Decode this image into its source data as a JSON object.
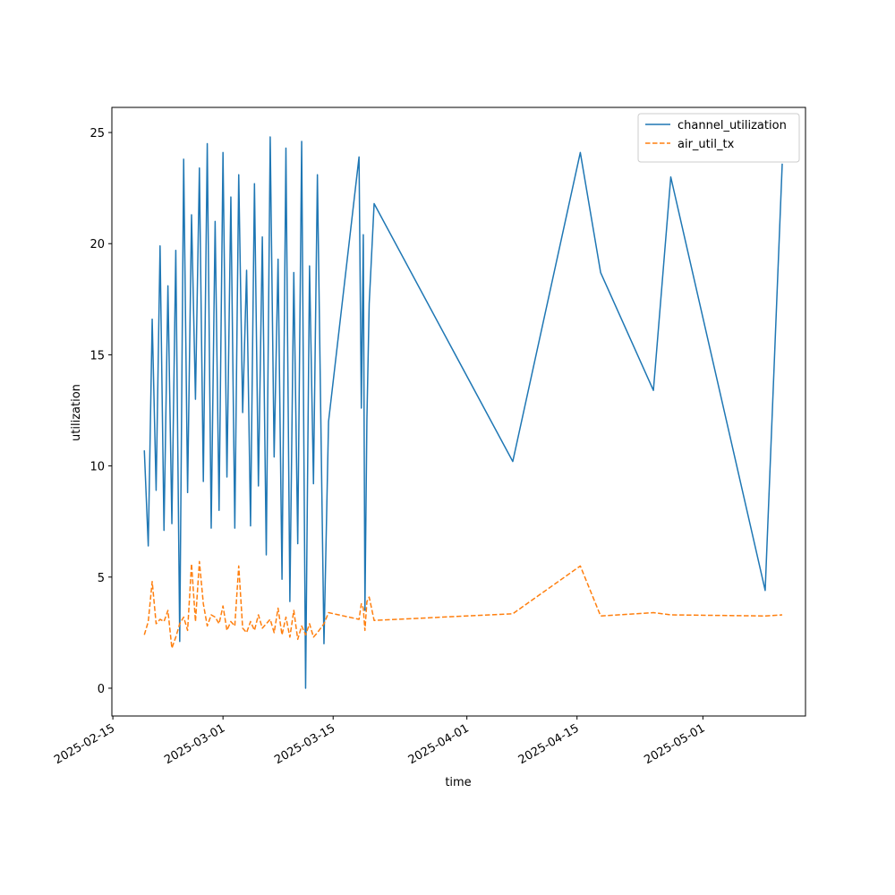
{
  "chart_data": {
    "type": "line",
    "xlabel": "time",
    "ylabel": "utilization",
    "x": [
      "2025-02-19T00:00",
      "2025-02-19T12:00",
      "2025-02-20T00:00",
      "2025-02-20T12:00",
      "2025-02-21T00:00",
      "2025-02-21T12:00",
      "2025-02-22T00:00",
      "2025-02-22T12:00",
      "2025-02-23T00:00",
      "2025-02-23T12:00",
      "2025-02-24T00:00",
      "2025-02-24T12:00",
      "2025-02-25T00:00",
      "2025-02-25T12:00",
      "2025-02-26T00:00",
      "2025-02-26T12:00",
      "2025-02-27T00:00",
      "2025-02-27T12:00",
      "2025-02-28T00:00",
      "2025-02-28T12:00",
      "2025-03-01T00:00",
      "2025-03-01T12:00",
      "2025-03-02T00:00",
      "2025-03-02T12:00",
      "2025-03-03T00:00",
      "2025-03-03T12:00",
      "2025-03-04T00:00",
      "2025-03-04T12:00",
      "2025-03-05T00:00",
      "2025-03-05T12:00",
      "2025-03-06T00:00",
      "2025-03-06T12:00",
      "2025-03-07T00:00",
      "2025-03-07T12:00",
      "2025-03-08T00:00",
      "2025-03-08T12:00",
      "2025-03-09T00:00",
      "2025-03-09T12:00",
      "2025-03-10T00:00",
      "2025-03-10T12:00",
      "2025-03-11T00:00",
      "2025-03-11T12:00",
      "2025-03-12T00:00",
      "2025-03-12T12:00",
      "2025-03-13T00:00",
      "2025-03-13T20:00",
      "2025-03-14T10:00",
      "2025-03-18T07:00",
      "2025-03-18T14:00",
      "2025-03-18T20:00",
      "2025-03-19T01:00",
      "2025-03-19T07:00",
      "2025-03-19T14:00",
      "2025-03-20T05:00",
      "2025-04-06T20:00",
      "2025-04-15T10:00",
      "2025-04-18T00:00",
      "2025-04-24T17:00",
      "2025-04-26T22:00",
      "2025-05-08T22:00",
      "2025-05-11T02:00"
    ],
    "series": [
      {
        "name": "channel_utilization",
        "color": "#1f77b4",
        "dash": false,
        "values": [
          10.7,
          6.4,
          16.6,
          8.9,
          19.9,
          7.1,
          18.1,
          7.4,
          19.7,
          2.1,
          23.8,
          8.8,
          21.3,
          13.0,
          23.4,
          9.3,
          24.5,
          7.2,
          21.0,
          8.0,
          24.1,
          9.5,
          22.1,
          7.2,
          23.1,
          12.4,
          18.8,
          7.3,
          22.7,
          9.1,
          20.3,
          6.0,
          24.8,
          10.4,
          19.3,
          4.9,
          24.3,
          3.9,
          18.7,
          6.5,
          24.6,
          0.0,
          19.0,
          9.2,
          23.1,
          2.0,
          12.0,
          23.9,
          12.6,
          20.4,
          3.5,
          12.1,
          17.3,
          21.8,
          10.2,
          24.1,
          18.7,
          13.4,
          23.0,
          4.4,
          23.6
        ]
      },
      {
        "name": "air_util_tx",
        "color": "#ff7f0e",
        "dash": true,
        "values": [
          2.4,
          3.0,
          4.8,
          2.9,
          3.1,
          3.0,
          3.5,
          1.8,
          2.3,
          2.9,
          3.2,
          2.6,
          5.6,
          3.0,
          5.7,
          3.8,
          2.8,
          3.3,
          3.2,
          2.9,
          3.7,
          2.6,
          3.0,
          2.8,
          5.5,
          2.7,
          2.5,
          3.0,
          2.6,
          3.3,
          2.7,
          2.9,
          3.1,
          2.5,
          3.6,
          2.4,
          3.2,
          2.3,
          3.5,
          2.2,
          2.8,
          2.4,
          2.9,
          2.3,
          2.5,
          2.9,
          3.4,
          3.1,
          3.8,
          3.6,
          2.6,
          3.9,
          4.1,
          3.05,
          3.35,
          5.5,
          3.25,
          3.4,
          3.3,
          3.25,
          3.3
        ]
      }
    ],
    "xlim": [
      "2025-02-14T21:00",
      "2025-05-14T01:00"
    ],
    "xticks": [
      "2025-02-15",
      "2025-03-01",
      "2025-03-15",
      "2025-04-01",
      "2025-04-15",
      "2025-05-01"
    ],
    "ylim": [
      -1.25,
      26.13
    ],
    "yticks": [
      0,
      5,
      10,
      15,
      20,
      25
    ],
    "grid": false,
    "legend": "upper right"
  }
}
